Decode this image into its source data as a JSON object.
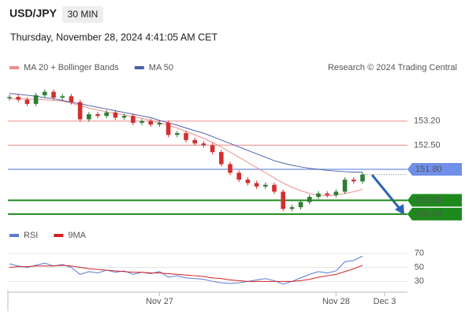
{
  "chart_data": {
    "type": "candlestick",
    "title": "USD/JPY",
    "timeframe": "30 MIN",
    "subtitle": "Thursday, November 28, 2024 4:41:05 AM CET",
    "attribution": "Research © 2024 Trading Central",
    "xlim": [
      0,
      45
    ],
    "xticks": [
      {
        "value": 17,
        "label": "Nov 27"
      },
      {
        "value": 37,
        "label": "Nov 28"
      },
      {
        "value": 42.5,
        "label": "Dec 3"
      }
    ],
    "ylim": [
      150.2,
      155.0
    ],
    "up_color": "#2e7d32",
    "down_color": "#d32f2f",
    "close": [
      153.9,
      153.82,
      153.7,
      153.95,
      154.05,
      153.88,
      153.92,
      153.75,
      153.25,
      153.4,
      153.35,
      153.45,
      153.3,
      153.35,
      153.15,
      153.2,
      153.1,
      153.15,
      152.8,
      152.85,
      152.65,
      152.55,
      152.5,
      152.3,
      151.95,
      151.7,
      151.5,
      151.4,
      151.3,
      151.35,
      151.15,
      150.65,
      150.7,
      150.85,
      151.0,
      151.1,
      151.05,
      151.15,
      151.5,
      151.45,
      151.65
    ],
    "series": [
      {
        "name": "MA 20 + Bollinger Bands",
        "color": "#f08c8c",
        "values": [
          153.85,
          153.85,
          153.84,
          153.83,
          153.82,
          153.8,
          153.78,
          153.72,
          153.65,
          153.58,
          153.52,
          153.47,
          153.42,
          153.38,
          153.33,
          153.28,
          153.22,
          153.15,
          153.08,
          153.0,
          152.9,
          152.8,
          152.7,
          152.58,
          152.45,
          152.3,
          152.15,
          152.0,
          151.85,
          151.7,
          151.55,
          151.4,
          151.28,
          151.18,
          151.1,
          151.05,
          151.03,
          151.05,
          151.1,
          151.15,
          151.22
        ]
      },
      {
        "name": "MA 50",
        "color": "#4a5fa8",
        "values": [
          154.0,
          153.98,
          153.95,
          153.92,
          153.88,
          153.85,
          153.8,
          153.75,
          153.7,
          153.65,
          153.6,
          153.55,
          153.5,
          153.45,
          153.4,
          153.35,
          153.3,
          153.22,
          153.15,
          153.08,
          153.0,
          152.92,
          152.85,
          152.75,
          152.65,
          152.55,
          152.45,
          152.35,
          152.25,
          152.15,
          152.05,
          151.98,
          151.92,
          151.87,
          151.83,
          151.8,
          151.77,
          151.75,
          151.73,
          151.72,
          151.72
        ]
      }
    ],
    "levels": [
      {
        "value": 153.2,
        "label": "153.20",
        "color": "#f4a0a0",
        "boxed": false
      },
      {
        "value": 152.5,
        "label": "152.50",
        "color": "#f4a0a0",
        "boxed": false
      },
      {
        "value": 151.8,
        "label": "151.80",
        "color": "#6f8fe8",
        "boxed": true
      },
      {
        "value": 150.9,
        "label": "150.90",
        "color": "#1e8a1e",
        "boxed": true
      },
      {
        "value": 150.5,
        "label": "150.50",
        "color": "#1e8a1e",
        "boxed": true
      }
    ],
    "rsi": {
      "ylim": [
        18,
        82
      ],
      "yticks": [
        30,
        50,
        70
      ],
      "series": [
        {
          "name": "RSI",
          "color": "#5b7bd5",
          "values": [
            55,
            52,
            50,
            53,
            56,
            52,
            54,
            50,
            40,
            44,
            42,
            46,
            43,
            45,
            40,
            43,
            41,
            44,
            36,
            38,
            35,
            34,
            33,
            30,
            28,
            27,
            28,
            30,
            32,
            34,
            31,
            26,
            30,
            35,
            40,
            44,
            42,
            45,
            58,
            60,
            66
          ]
        },
        {
          "name": "9MA",
          "color": "#d42020",
          "values": [
            50,
            51,
            51,
            52,
            52,
            52,
            53,
            52,
            50,
            48,
            47,
            46,
            45,
            44,
            43,
            43,
            42,
            42,
            41,
            40,
            39,
            38,
            37,
            35,
            34,
            32,
            31,
            30,
            30,
            30,
            30,
            30,
            30,
            31,
            33,
            36,
            38,
            40,
            44,
            48,
            53
          ]
        }
      ]
    }
  }
}
